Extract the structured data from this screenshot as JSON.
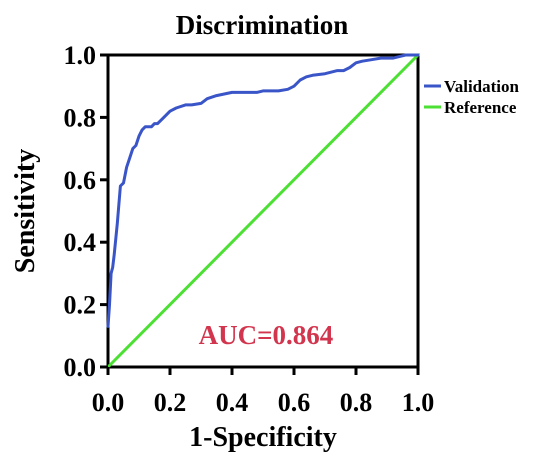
{
  "chart_data": {
    "type": "line",
    "title": "Discrimination",
    "xlabel": "1-Specificity",
    "ylabel": "Sensitivity",
    "xlim": [
      0,
      1
    ],
    "ylim": [
      0,
      1
    ],
    "xticks": [
      "0.0",
      "0.2",
      "0.4",
      "0.6",
      "0.8",
      "1.0"
    ],
    "yticks": [
      "0.0",
      "0.2",
      "0.4",
      "0.6",
      "0.8",
      "1.0"
    ],
    "grid": false,
    "legend": {
      "placement": "right",
      "entries": [
        "Validation",
        "Reference"
      ]
    },
    "annotation": "AUC=0.864",
    "series": [
      {
        "name": "Validation",
        "color": "#3a55c8",
        "x": [
          0,
          0.005,
          0.01,
          0.015,
          0.02,
          0.03,
          0.04,
          0.05,
          0.06,
          0.07,
          0.08,
          0.09,
          0.1,
          0.11,
          0.12,
          0.13,
          0.14,
          0.15,
          0.16,
          0.18,
          0.2,
          0.22,
          0.25,
          0.27,
          0.3,
          0.32,
          0.35,
          0.4,
          0.45,
          0.48,
          0.5,
          0.55,
          0.58,
          0.6,
          0.62,
          0.64,
          0.66,
          0.7,
          0.74,
          0.76,
          0.78,
          0.8,
          0.82,
          0.85,
          0.88,
          0.9,
          0.92,
          0.94,
          0.96,
          1.0
        ],
        "y": [
          0.13,
          0.2,
          0.3,
          0.32,
          0.36,
          0.46,
          0.58,
          0.59,
          0.64,
          0.67,
          0.7,
          0.71,
          0.74,
          0.76,
          0.77,
          0.77,
          0.77,
          0.78,
          0.78,
          0.8,
          0.82,
          0.83,
          0.84,
          0.84,
          0.845,
          0.86,
          0.87,
          0.88,
          0.88,
          0.88,
          0.885,
          0.885,
          0.89,
          0.9,
          0.92,
          0.93,
          0.935,
          0.94,
          0.95,
          0.95,
          0.96,
          0.975,
          0.98,
          0.985,
          0.99,
          0.99,
          0.99,
          0.995,
          1.0,
          1.0
        ]
      },
      {
        "name": "Reference",
        "color": "#4de034",
        "x": [
          0,
          1
        ],
        "y": [
          0,
          1
        ]
      }
    ]
  }
}
